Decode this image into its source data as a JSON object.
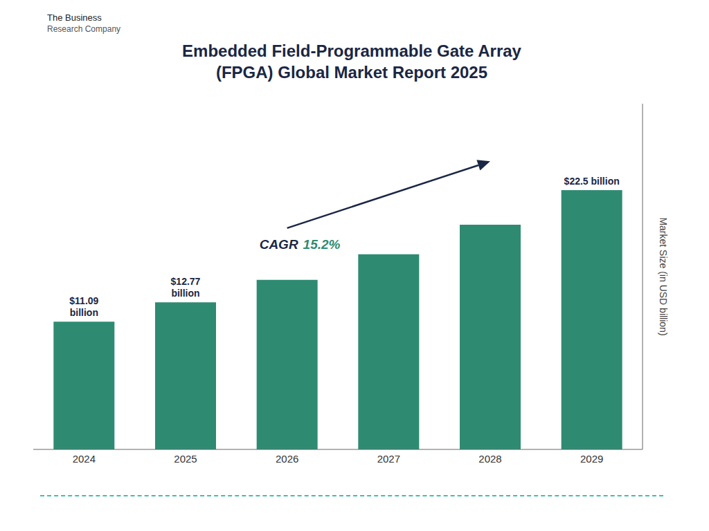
{
  "chart_data": {
    "type": "bar",
    "title": "Embedded Field-Programmable Gate Array\n(FPGA) Global Market Report 2025",
    "categories": [
      "2024",
      "2025",
      "2026",
      "2027",
      "2028",
      "2029"
    ],
    "values": [
      11.09,
      12.77,
      14.71,
      16.94,
      19.5,
      22.5
    ],
    "color": "#2e8b72",
    "value_labels": [
      "$11.09\nbillion",
      "$12.77\nbillion",
      null,
      null,
      null,
      "$22.5 billion"
    ],
    "ylabel": "Market Size (in USD billion)",
    "ylim": [
      0,
      30
    ],
    "tick_labels": "x",
    "grid": false,
    "annotations": [
      "CAGR 15.2%",
      "The Business",
      "Research Company"
    ]
  }
}
